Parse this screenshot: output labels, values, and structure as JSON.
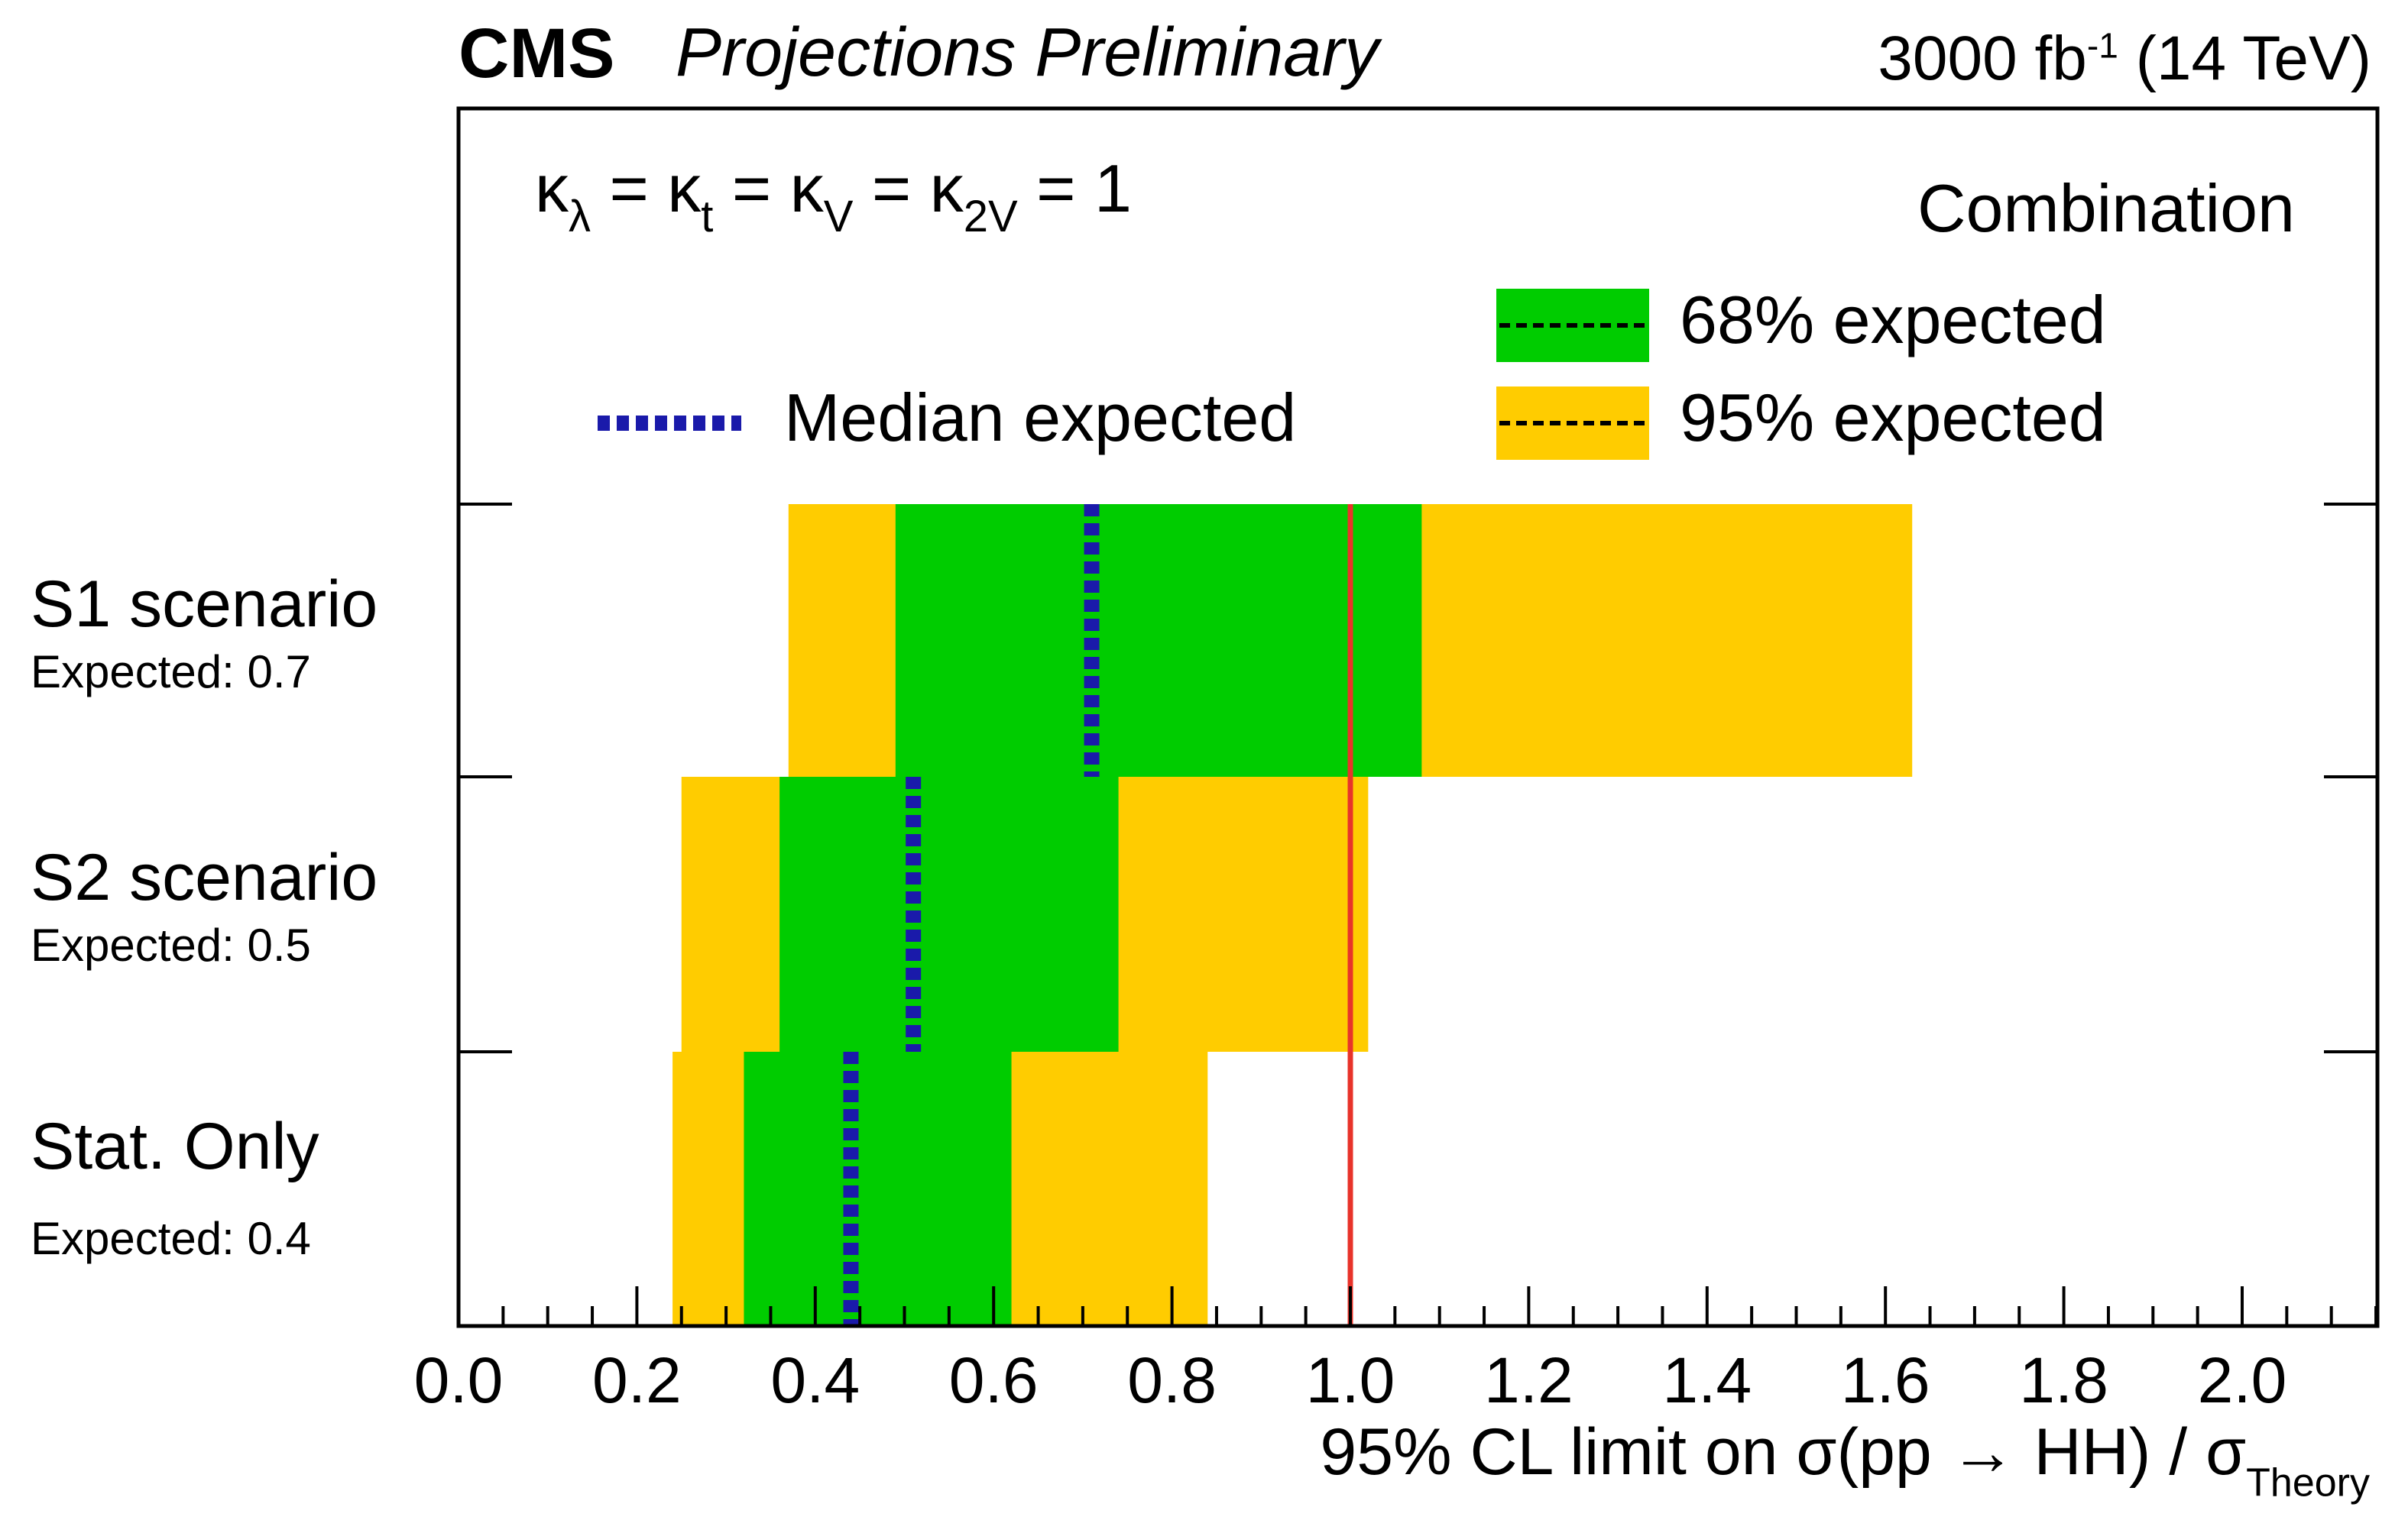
{
  "header": {
    "experiment": "CMS",
    "status": "Projections Preliminary",
    "luminosity": "3000 fb",
    "luminosity_exp": "-1",
    "energy": " (14 TeV)"
  },
  "kappa_label": {
    "k_lambda": "κ",
    "sub_lambda": "λ",
    "eq1": " = κ",
    "sub_t": "t",
    "eq2": " = κ",
    "sub_V": "V",
    "eq3": " = κ",
    "sub_2V": "2V",
    "eq4": " = 1"
  },
  "chart_data": {
    "type": "horizontal-band-limit",
    "title": "Combination",
    "xlabel_main": "95% CL limit on σ(pp → HH) / σ",
    "xlabel_sub": "Theory",
    "xlim": [
      0.0,
      2.15
    ],
    "xticks": [
      0.0,
      0.2,
      0.4,
      0.6,
      0.8,
      1.0,
      1.2,
      1.4,
      1.6,
      1.8,
      2.0
    ],
    "xtick_labels": [
      "0.0",
      "0.2",
      "0.4",
      "0.6",
      "0.8",
      "1.0",
      "1.2",
      "1.4",
      "1.6",
      "1.8",
      "2.0"
    ],
    "reference_line": 1.0,
    "categories": [
      {
        "name": "S1 scenario",
        "expected_label": "Expected: 0.7",
        "median": 0.71,
        "band68": [
          0.49,
          1.08
        ],
        "band95": [
          0.37,
          1.63
        ]
      },
      {
        "name": "S2 scenario",
        "expected_label": "Expected: 0.5",
        "median": 0.51,
        "band68": [
          0.36,
          0.74
        ],
        "band95": [
          0.25,
          1.02
        ]
      },
      {
        "name": "Stat. Only",
        "expected_label": "Expected: 0.4",
        "median": 0.44,
        "band68": [
          0.32,
          0.62
        ],
        "band95": [
          0.24,
          0.84
        ]
      }
    ],
    "legend": {
      "median": "Median expected",
      "band68": "68% expected",
      "band95": "95% expected"
    },
    "colors": {
      "band68": "#00cc00",
      "band95": "#ffcc00",
      "median": "#1a1aaa",
      "reference": "#e8332a",
      "frame": "#000000"
    }
  }
}
